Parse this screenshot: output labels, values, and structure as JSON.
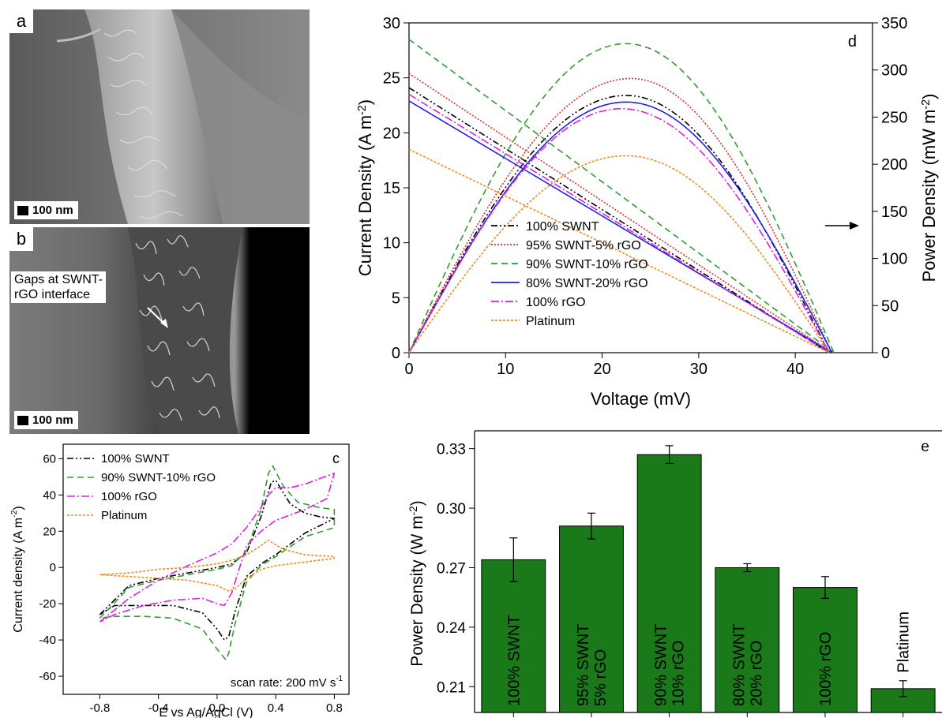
{
  "figure": {
    "panel_a": {
      "letter": "a",
      "scale_bar": "100 nm"
    },
    "panel_b": {
      "letter": "b",
      "scale_bar": "100 nm",
      "annotation_line1": "Gaps at SWNT-",
      "annotation_line2": "rGO interface"
    }
  },
  "colors": {
    "swnt100": "#000000",
    "swnt95": "#e0302a",
    "swnt90": "#2f9e2f",
    "swnt80": "#2020e8",
    "rgo100": "#e020e0",
    "platinum": "#f08a20",
    "bar_fill": "#1a7a1a"
  },
  "chart_data": [
    {
      "id": "c",
      "panel_letter": "c",
      "type": "line",
      "xlabel": "E vs Ag/AgCl (V)",
      "ylabel_main": "Current density (A m",
      "ylabel_sup": "-2",
      "ylabel_end": ")",
      "xlim": [
        -1.05,
        0.9
      ],
      "ylim": [
        -70,
        68
      ],
      "xticks": [
        -0.8,
        -0.4,
        0.0,
        0.4,
        0.8
      ],
      "xtick_labels": [
        "-0.8",
        "-0.4",
        "0.0",
        "0.4",
        "0.8"
      ],
      "yticks": [
        -60,
        -40,
        -20,
        0,
        20,
        40,
        60
      ],
      "ytick_labels": [
        "-60",
        "-40",
        "-20",
        "0",
        "20",
        "40",
        "60"
      ],
      "annotation_main": "scan rate: 200 mV s",
      "annotation_sup": "-1",
      "legend_position": "top-left",
      "series": [
        {
          "name": "100% SWNT",
          "color": "#000000",
          "dash": "8 3 2 3 2 3",
          "forward": [
            [
              -0.8,
              -26
            ],
            [
              -0.6,
              -10
            ],
            [
              -0.4,
              -6
            ],
            [
              -0.2,
              -3
            ],
            [
              0,
              0
            ],
            [
              0.1,
              2
            ],
            [
              0.2,
              8
            ],
            [
              0.3,
              28
            ],
            [
              0.37,
              47
            ],
            [
              0.4,
              48
            ],
            [
              0.5,
              35
            ],
            [
              0.6,
              30
            ],
            [
              0.7,
              28
            ],
            [
              0.8,
              27
            ]
          ],
          "reverse": [
            [
              0.8,
              27
            ],
            [
              0.6,
              19
            ],
            [
              0.4,
              7
            ],
            [
              0.3,
              2
            ],
            [
              0.2,
              -5
            ],
            [
              0.12,
              -25
            ],
            [
              0.08,
              -38
            ],
            [
              0.05,
              -40
            ],
            [
              0,
              -34
            ],
            [
              -0.1,
              -25
            ],
            [
              -0.3,
              -21
            ],
            [
              -0.5,
              -21
            ],
            [
              -0.7,
              -21
            ],
            [
              -0.8,
              -26
            ]
          ]
        },
        {
          "name": "90% SWNT-10% rGO",
          "color": "#2f9e2f",
          "dash": "8 5",
          "forward": [
            [
              -0.8,
              -28
            ],
            [
              -0.6,
              -11
            ],
            [
              -0.4,
              -7
            ],
            [
              -0.2,
              -4
            ],
            [
              0,
              -1
            ],
            [
              0.1,
              1
            ],
            [
              0.2,
              9
            ],
            [
              0.3,
              32
            ],
            [
              0.35,
              52
            ],
            [
              0.38,
              56
            ],
            [
              0.45,
              45
            ],
            [
              0.55,
              36
            ],
            [
              0.7,
              33
            ],
            [
              0.8,
              32
            ]
          ],
          "reverse": [
            [
              0.8,
              32
            ],
            [
              0.8,
              22
            ],
            [
              0.6,
              17
            ],
            [
              0.4,
              6
            ],
            [
              0.3,
              1
            ],
            [
              0.2,
              -8
            ],
            [
              0.12,
              -32
            ],
            [
              0.08,
              -47
            ],
            [
              0.06,
              -51
            ],
            [
              0,
              -45
            ],
            [
              -0.1,
              -34
            ],
            [
              -0.3,
              -28
            ],
            [
              -0.5,
              -27
            ],
            [
              -0.7,
              -27
            ],
            [
              -0.8,
              -28
            ]
          ]
        },
        {
          "name": "100% rGO",
          "color": "#e020e0",
          "dash": "10 3 2 3",
          "forward": [
            [
              -0.8,
              -30
            ],
            [
              -0.6,
              -17
            ],
            [
              -0.4,
              -7
            ],
            [
              -0.2,
              1
            ],
            [
              0,
              8
            ],
            [
              0.1,
              13
            ],
            [
              0.2,
              22
            ],
            [
              0.3,
              33
            ],
            [
              0.35,
              40
            ],
            [
              0.4,
              44
            ],
            [
              0.5,
              44
            ],
            [
              0.6,
              46
            ],
            [
              0.7,
              49
            ],
            [
              0.8,
              52
            ]
          ],
          "reverse": [
            [
              0.8,
              52
            ],
            [
              0.75,
              38
            ],
            [
              0.6,
              32
            ],
            [
              0.4,
              26
            ],
            [
              0.3,
              20
            ],
            [
              0.2,
              12
            ],
            [
              0.1,
              -14
            ],
            [
              0.05,
              -21
            ],
            [
              0,
              -20
            ],
            [
              -0.1,
              -17
            ],
            [
              -0.3,
              -18
            ],
            [
              -0.5,
              -21
            ],
            [
              -0.7,
              -26
            ],
            [
              -0.8,
              -30
            ]
          ]
        },
        {
          "name": "Platinum",
          "color": "#f08a20",
          "dash": "3 2",
          "forward": [
            [
              -0.8,
              -4
            ],
            [
              -0.6,
              -3
            ],
            [
              -0.4,
              -1
            ],
            [
              -0.2,
              0
            ],
            [
              0,
              2
            ],
            [
              0.1,
              4
            ],
            [
              0.2,
              7
            ],
            [
              0.3,
              12
            ],
            [
              0.35,
              15
            ],
            [
              0.45,
              10
            ],
            [
              0.6,
              7
            ],
            [
              0.8,
              6
            ]
          ],
          "reverse": [
            [
              0.8,
              5
            ],
            [
              0.6,
              3
            ],
            [
              0.4,
              1
            ],
            [
              0.3,
              -1
            ],
            [
              0.2,
              -6
            ],
            [
              0.12,
              -12
            ],
            [
              0.08,
              -13
            ],
            [
              0,
              -10
            ],
            [
              -0.2,
              -7
            ],
            [
              -0.4,
              -6
            ],
            [
              -0.6,
              -5
            ],
            [
              -0.8,
              -4
            ]
          ]
        }
      ]
    },
    {
      "id": "d",
      "panel_letter": "d",
      "type": "line",
      "xlabel": "Voltage (mV)",
      "ylabel_left_main": "Current Density (A m",
      "ylabel_left_sup": "-2",
      "ylabel_left_end": ")",
      "ylabel_right_main": "Power Density (mW m",
      "ylabel_right_sup": "-2",
      "ylabel_right_end": ")",
      "xlim": [
        0,
        48
      ],
      "ylim_left": [
        0,
        30
      ],
      "ylim_right": [
        0,
        350
      ],
      "xticks": [
        0,
        10,
        20,
        30,
        40
      ],
      "xtick_labels": [
        "0",
        "10",
        "20",
        "30",
        "40"
      ],
      "yticks_left": [
        0,
        5,
        10,
        15,
        20,
        25,
        30
      ],
      "ytick_labels_left": [
        "0",
        "5",
        "10",
        "15",
        "20",
        "25",
        "30"
      ],
      "yticks_right": [
        0,
        50,
        100,
        150,
        200,
        250,
        300,
        350
      ],
      "ytick_labels_right": [
        "0",
        "50",
        "100",
        "150",
        "200",
        "250",
        "300",
        "350"
      ],
      "arrow_points_to": "right axis",
      "legend_position": "bottom-left",
      "series": [
        {
          "name": "100% SWNT",
          "color": "#000000",
          "dash": "8 3 2 3 2 3",
          "voc": 43.5,
          "jsc": 24.1,
          "pmax": 273,
          "vmp": 22.5
        },
        {
          "name": "95% SWNT-5% rGO",
          "color": "#e0302a",
          "dash": "2 2",
          "voc": 43.8,
          "jsc": 25.4,
          "pmax": 291,
          "vmp": 23.0
        },
        {
          "name": "90% SWNT-10% rGO",
          "color": "#2f9e2f",
          "dash": "8 5",
          "voc": 44.0,
          "jsc": 28.5,
          "pmax": 328,
          "vmp": 22.5
        },
        {
          "name": "80% SWNT-20% rGO",
          "color": "#2020e8",
          "dash": "",
          "voc": 43.8,
          "jsc": 22.9,
          "pmax": 266,
          "vmp": 22.5
        },
        {
          "name": "100% rGO",
          "color": "#e020e0",
          "dash": "10 3 2 3",
          "voc": 43.5,
          "jsc": 23.5,
          "pmax": 259,
          "vmp": 22.0
        },
        {
          "name": "Platinum",
          "color": "#f08a20",
          "dash": "3 2",
          "voc": 43.5,
          "jsc": 18.5,
          "pmax": 209,
          "vmp": 22.5
        }
      ]
    },
    {
      "id": "e",
      "panel_letter": "e",
      "type": "bar",
      "ylabel_main": "Power Density (W m",
      "ylabel_sup": "-2",
      "ylabel_end": ")",
      "ylim": [
        0.197,
        0.339
      ],
      "yticks": [
        0.21,
        0.24,
        0.27,
        0.3,
        0.33
      ],
      "ytick_labels": [
        "0.21",
        "0.24",
        "0.27",
        "0.30",
        "0.33"
      ],
      "bars": [
        {
          "label1": "100% SWNT",
          "label2": "",
          "value": 0.274,
          "error": 0.011
        },
        {
          "label1": "95% SWNT",
          "label2": "5% rGO",
          "value": 0.291,
          "error": 0.0065
        },
        {
          "label1": "90% SWNT",
          "label2": "10% rGO",
          "value": 0.327,
          "error": 0.0045
        },
        {
          "label1": "80% SWNT",
          "label2": "20% rGO",
          "value": 0.27,
          "error": 0.002
        },
        {
          "label1": "100% rGO",
          "label2": "",
          "value": 0.26,
          "error": 0.0055
        },
        {
          "label1": "Platinum",
          "label2": "",
          "value": 0.209,
          "error": 0.004
        }
      ]
    }
  ]
}
